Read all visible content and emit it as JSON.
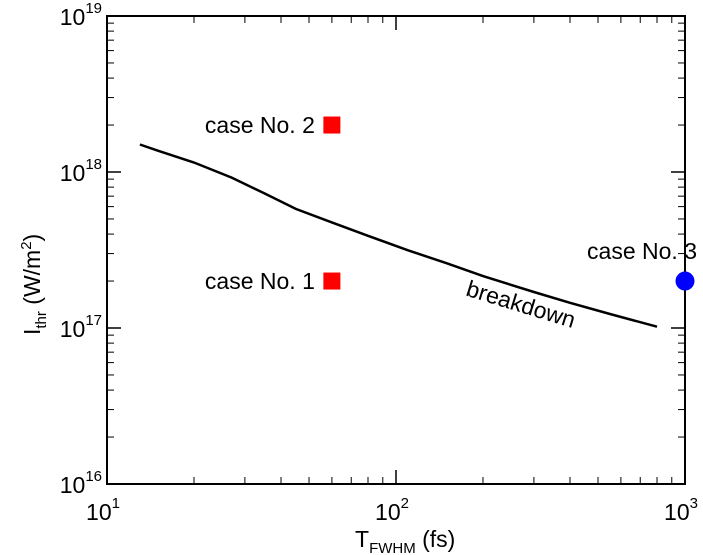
{
  "chart_data": {
    "type": "scatter",
    "x_scale": "log",
    "y_scale": "log",
    "xlim": [
      10,
      1000
    ],
    "ylim": [
      1e+16,
      1e+19
    ],
    "grid": false,
    "xlabel": {
      "main": "T",
      "sub": "FWHM",
      "unit": " (fs)"
    },
    "ylabel": {
      "main": "I",
      "sub": "thr",
      "unit_pre": " (W/m",
      "unit_sup": "2",
      "unit_post": ")"
    },
    "x_ticks": [
      {
        "value": 10,
        "base": "10",
        "exp": "1"
      },
      {
        "value": 100,
        "base": "10",
        "exp": "2"
      },
      {
        "value": 1000,
        "base": "10",
        "exp": "3"
      }
    ],
    "y_ticks": [
      {
        "value": 1e+16,
        "base": "10",
        "exp": "16"
      },
      {
        "value": 1e+17,
        "base": "10",
        "exp": "17"
      },
      {
        "value": 1e+18,
        "base": "10",
        "exp": "18"
      },
      {
        "value": 1e+19,
        "base": "10",
        "exp": "19"
      }
    ],
    "curve": {
      "label": "breakdown",
      "color": "#000000",
      "points": [
        [
          13,
          1.5e+18
        ],
        [
          15,
          1.37e+18
        ],
        [
          20,
          1.15e+18
        ],
        [
          27,
          9.2e+17
        ],
        [
          35,
          7.3e+17
        ],
        [
          45,
          5.8e+17
        ],
        [
          60,
          4.75e+17
        ],
        [
          80,
          3.9e+17
        ],
        [
          110,
          3.15e+17
        ],
        [
          150,
          2.6e+17
        ],
        [
          200,
          2.15e+17
        ],
        [
          300,
          1.7e+17
        ],
        [
          400,
          1.45e+17
        ],
        [
          550,
          1.23e+17
        ],
        [
          800,
          1.02e+17
        ]
      ]
    },
    "points": [
      {
        "label": "case No. 1",
        "x": 60,
        "y": 2e+17,
        "marker": "square",
        "color": "#ff0000"
      },
      {
        "label": "case No. 2",
        "x": 60,
        "y": 2e+18,
        "marker": "square",
        "color": "#ff0000"
      },
      {
        "label": "case No. 3",
        "x": 1000,
        "y": 2e+17,
        "marker": "circle",
        "color": "#0000ff"
      }
    ]
  }
}
